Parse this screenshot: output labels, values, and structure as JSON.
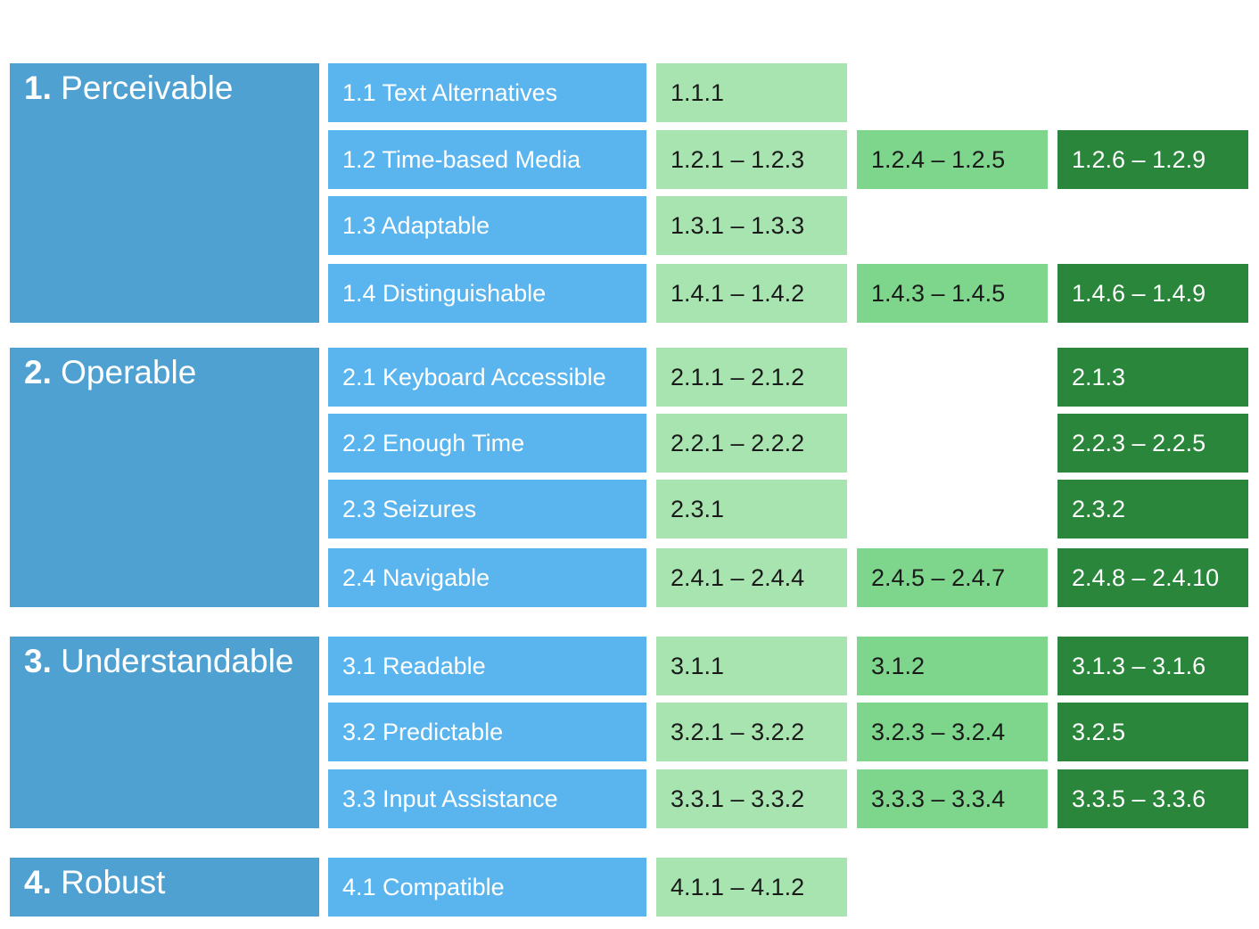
{
  "colors": {
    "principle_bg": "#4fa1d1",
    "guideline_bg": "#5ab5ee",
    "criteria_level_1_bg": "#a8e4b0",
    "criteria_level_2_bg": "#7dd68b",
    "criteria_level_3_bg": "#2a863a"
  },
  "principles": [
    {
      "number": "1.",
      "title": "Perceivable",
      "guidelines": [
        {
          "label": "1.1 Text Alternatives",
          "criteria": [
            "1.1.1",
            null,
            null
          ]
        },
        {
          "label": "1.2 Time-based Media",
          "criteria": [
            "1.2.1 – 1.2.3",
            "1.2.4 – 1.2.5",
            "1.2.6 – 1.2.9"
          ]
        },
        {
          "label": "1.3 Adaptable",
          "criteria": [
            "1.3.1 – 1.3.3",
            null,
            null
          ]
        },
        {
          "label": "1.4 Distinguishable",
          "criteria": [
            "1.4.1 – 1.4.2",
            "1.4.3 – 1.4.5",
            "1.4.6 – 1.4.9"
          ]
        }
      ]
    },
    {
      "number": "2.",
      "title": "Operable",
      "guidelines": [
        {
          "label": "2.1 Keyboard Accessible",
          "criteria": [
            "2.1.1 – 2.1.2",
            null,
            "2.1.3"
          ]
        },
        {
          "label": "2.2 Enough Time",
          "criteria": [
            "2.2.1 – 2.2.2",
            null,
            "2.2.3 – 2.2.5"
          ]
        },
        {
          "label": "2.3 Seizures",
          "criteria": [
            "2.3.1",
            null,
            "2.3.2"
          ]
        },
        {
          "label": "2.4 Navigable",
          "criteria": [
            "2.4.1 – 2.4.4",
            "2.4.5 – 2.4.7",
            "2.4.8 – 2.4.10"
          ]
        }
      ]
    },
    {
      "number": "3.",
      "title": "Understandable",
      "guidelines": [
        {
          "label": "3.1 Readable",
          "criteria": [
            "3.1.1",
            "3.1.2",
            "3.1.3 – 3.1.6"
          ]
        },
        {
          "label": "3.2 Predictable",
          "criteria": [
            "3.2.1 – 3.2.2",
            "3.2.3 – 3.2.4",
            "3.2.5"
          ]
        },
        {
          "label": "3.3 Input Assistance",
          "criteria": [
            "3.3.1 – 3.3.2",
            "3.3.3 – 3.3.4",
            "3.3.5 – 3.3.6"
          ]
        }
      ]
    },
    {
      "number": "4.",
      "title": "Robust",
      "guidelines": [
        {
          "label": "4.1 Compatible",
          "criteria": [
            "4.1.1 – 4.1.2",
            null,
            null
          ]
        }
      ]
    }
  ]
}
